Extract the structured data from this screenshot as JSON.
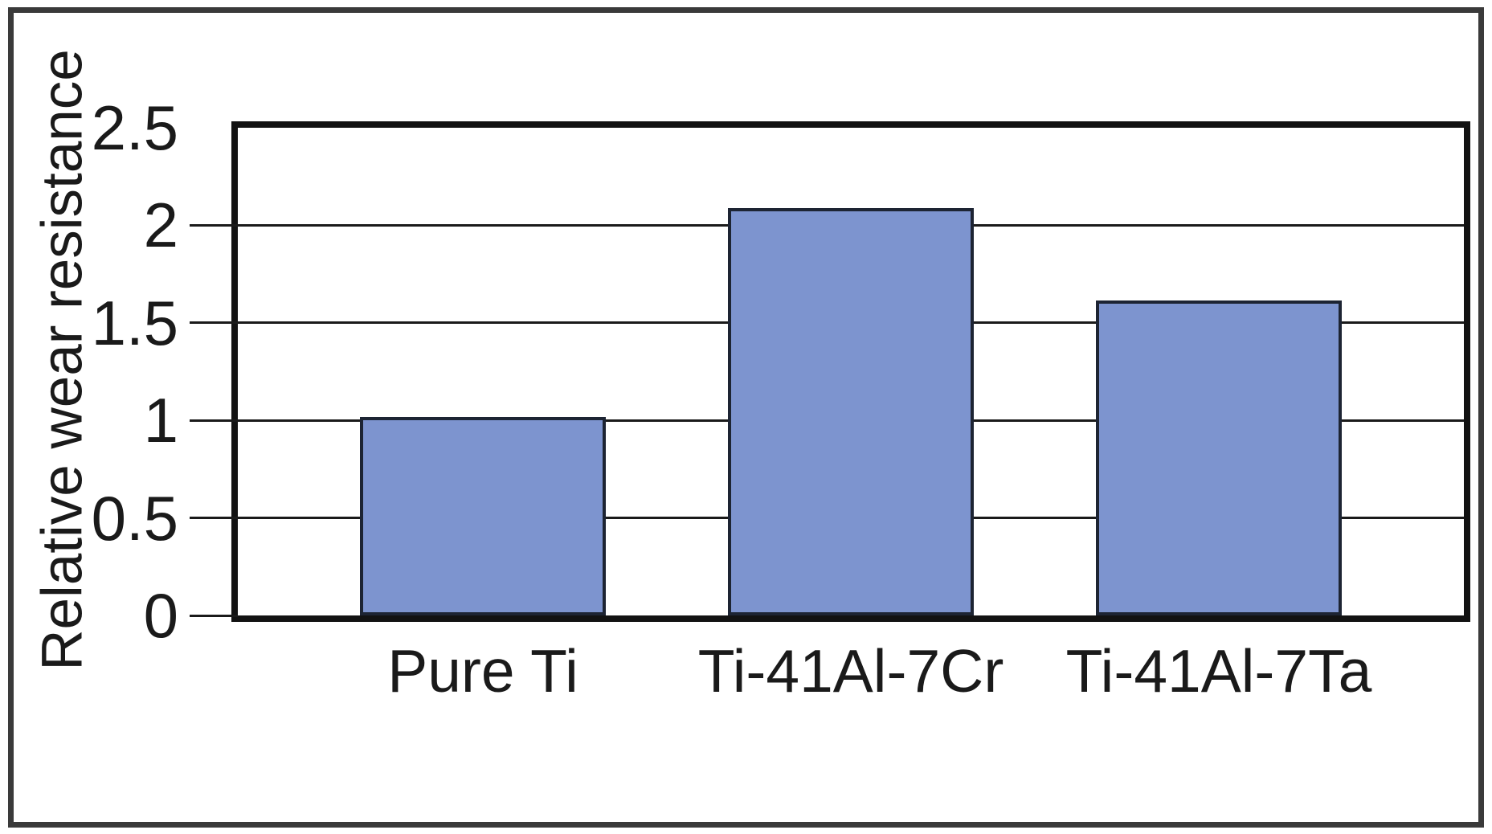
{
  "chart_data": {
    "type": "bar",
    "title": "",
    "xlabel": "",
    "ylabel": "Relative wear resistance",
    "categories": [
      "Pure Ti",
      "Ti-41Al-7Cr",
      "Ti-41Al-7Ta"
    ],
    "values": [
      1.0,
      2.07,
      1.6
    ],
    "ylim": [
      0,
      2.5
    ],
    "yticks": [
      0,
      0.5,
      1,
      1.5,
      2,
      2.5
    ],
    "ytick_labels": [
      "0",
      "0.5",
      "1",
      "1.5",
      "2",
      "2.5"
    ],
    "grid": "horizontal-only",
    "legend": "none",
    "colors": {
      "bar_fill": "#7d94cf",
      "bar_border": "#1d2433",
      "gridline": "#1a1a1a",
      "plot_border": "#121212",
      "outer_frame": "#3a3a3a",
      "text": "#1a1a1a",
      "background": "#ffffff"
    }
  }
}
